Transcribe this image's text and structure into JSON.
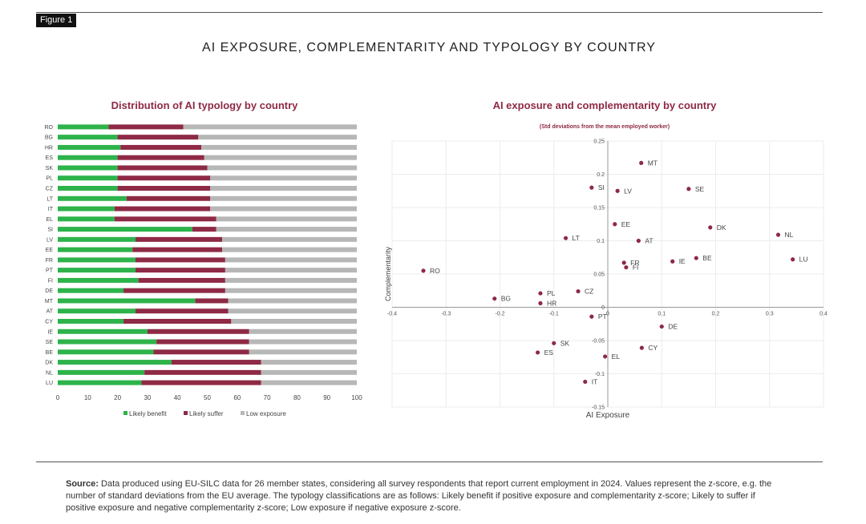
{
  "figure_label": "Figure 1",
  "main_title": "AI EXPOSURE, COMPLEMENTARITY AND TYPOLOGY BY COUNTRY",
  "colors": {
    "benefit": "#2db34a",
    "suffer": "#8e2a45",
    "low": "#b7b7b7",
    "title": "#8e2a45",
    "point": "#8e2a45"
  },
  "chart_data": [
    {
      "type": "bar",
      "orientation": "horizontal-stacked",
      "title": "Distribution of AI typology by country",
      "categories": [
        "RO",
        "BG",
        "HR",
        "ES",
        "SK",
        "PL",
        "CZ",
        "LT",
        "IT",
        "EL",
        "SI",
        "LV",
        "EE",
        "FR",
        "PT",
        "FI",
        "DE",
        "MT",
        "AT",
        "CY",
        "IE",
        "SE",
        "BE",
        "DK",
        "NL",
        "LU"
      ],
      "series": [
        {
          "name": "Likely benefit",
          "values": [
            17,
            20,
            21,
            20,
            20,
            20,
            20,
            23,
            19,
            19,
            45,
            26,
            25,
            26,
            26,
            27,
            22,
            46,
            26,
            22,
            30,
            33,
            32,
            38,
            29,
            28
          ]
        },
        {
          "name": "Likely suffer",
          "values": [
            25,
            27,
            27,
            29,
            30,
            31,
            31,
            28,
            32,
            34,
            8,
            29,
            30,
            30,
            30,
            29,
            34,
            11,
            31,
            36,
            34,
            31,
            32,
            30,
            39,
            40
          ]
        },
        {
          "name": "Low exposure",
          "values": [
            58,
            53,
            52,
            51,
            50,
            49,
            49,
            49,
            49,
            47,
            47,
            45,
            45,
            44,
            44,
            44,
            44,
            43,
            43,
            42,
            36,
            36,
            36,
            32,
            32,
            32
          ]
        }
      ],
      "xlim": [
        0,
        100
      ],
      "xticks": [
        "0",
        "10",
        "20",
        "30",
        "40",
        "50",
        "60",
        "70",
        "80",
        "90",
        "100"
      ],
      "legend": [
        "Likely benefit",
        "Likely suffer",
        "Low exposure"
      ]
    },
    {
      "type": "scatter",
      "title": "AI exposure and complementarity by country",
      "subtitle": "(Std deviations from the mean employed worker)",
      "xlabel": "AI Exposure",
      "ylabel": "Complementarity",
      "xlim": [
        -0.4,
        0.4
      ],
      "ylim": [
        -0.15,
        0.25
      ],
      "xticks": [
        "-0.4",
        "-0.3",
        "-0.2",
        "-0.1",
        "0",
        "0.1",
        "0.2",
        "0.3",
        "0.4"
      ],
      "yticks": [
        "-0.15",
        "-0.1",
        "-0.05",
        "0",
        "0.05",
        "0.1",
        "0.15",
        "0.2",
        "0.25"
      ],
      "points": [
        {
          "label": "MT",
          "x": 0.062,
          "y": 0.217
        },
        {
          "label": "SI",
          "x": -0.03,
          "y": 0.18
        },
        {
          "label": "LV",
          "x": 0.018,
          "y": 0.175
        },
        {
          "label": "SE",
          "x": 0.15,
          "y": 0.178
        },
        {
          "label": "EE",
          "x": 0.013,
          "y": 0.125
        },
        {
          "label": "DK",
          "x": 0.19,
          "y": 0.12
        },
        {
          "label": "NL",
          "x": 0.316,
          "y": 0.109
        },
        {
          "label": "LT",
          "x": -0.078,
          "y": 0.104
        },
        {
          "label": "AT",
          "x": 0.057,
          "y": 0.1
        },
        {
          "label": "LU",
          "x": 0.343,
          "y": 0.072
        },
        {
          "label": "BE",
          "x": 0.164,
          "y": 0.074
        },
        {
          "label": "IE",
          "x": 0.12,
          "y": 0.069
        },
        {
          "label": "FR",
          "x": 0.03,
          "y": 0.067
        },
        {
          "label": "FI",
          "x": 0.034,
          "y": 0.06
        },
        {
          "label": "RO",
          "x": -0.342,
          "y": 0.055
        },
        {
          "label": "CZ",
          "x": -0.055,
          "y": 0.024
        },
        {
          "label": "PL",
          "x": -0.125,
          "y": 0.021
        },
        {
          "label": "BG",
          "x": -0.21,
          "y": 0.013
        },
        {
          "label": "HR",
          "x": -0.125,
          "y": 0.006
        },
        {
          "label": "PT",
          "x": -0.03,
          "y": -0.014
        },
        {
          "label": "DE",
          "x": 0.1,
          "y": -0.029
        },
        {
          "label": "SK",
          "x": -0.1,
          "y": -0.054
        },
        {
          "label": "CY",
          "x": 0.063,
          "y": -0.061
        },
        {
          "label": "ES",
          "x": -0.13,
          "y": -0.068
        },
        {
          "label": "EL",
          "x": -0.005,
          "y": -0.074
        },
        {
          "label": "IT",
          "x": -0.042,
          "y": -0.112
        }
      ]
    }
  ],
  "source": {
    "label": "Source:",
    "text": " Data produced using EU-SILC data for 26 member states, considering all survey respondents that report current employment in 2024. Values represent the z-score, e.g. the number of standard deviations from the EU average. The typology classifications are as follows: Likely benefit if positive exposure and complementarity z-score; Likely to suffer if positive exposure and negative complementarity z-score; Low exposure if negative exposure z-score."
  }
}
